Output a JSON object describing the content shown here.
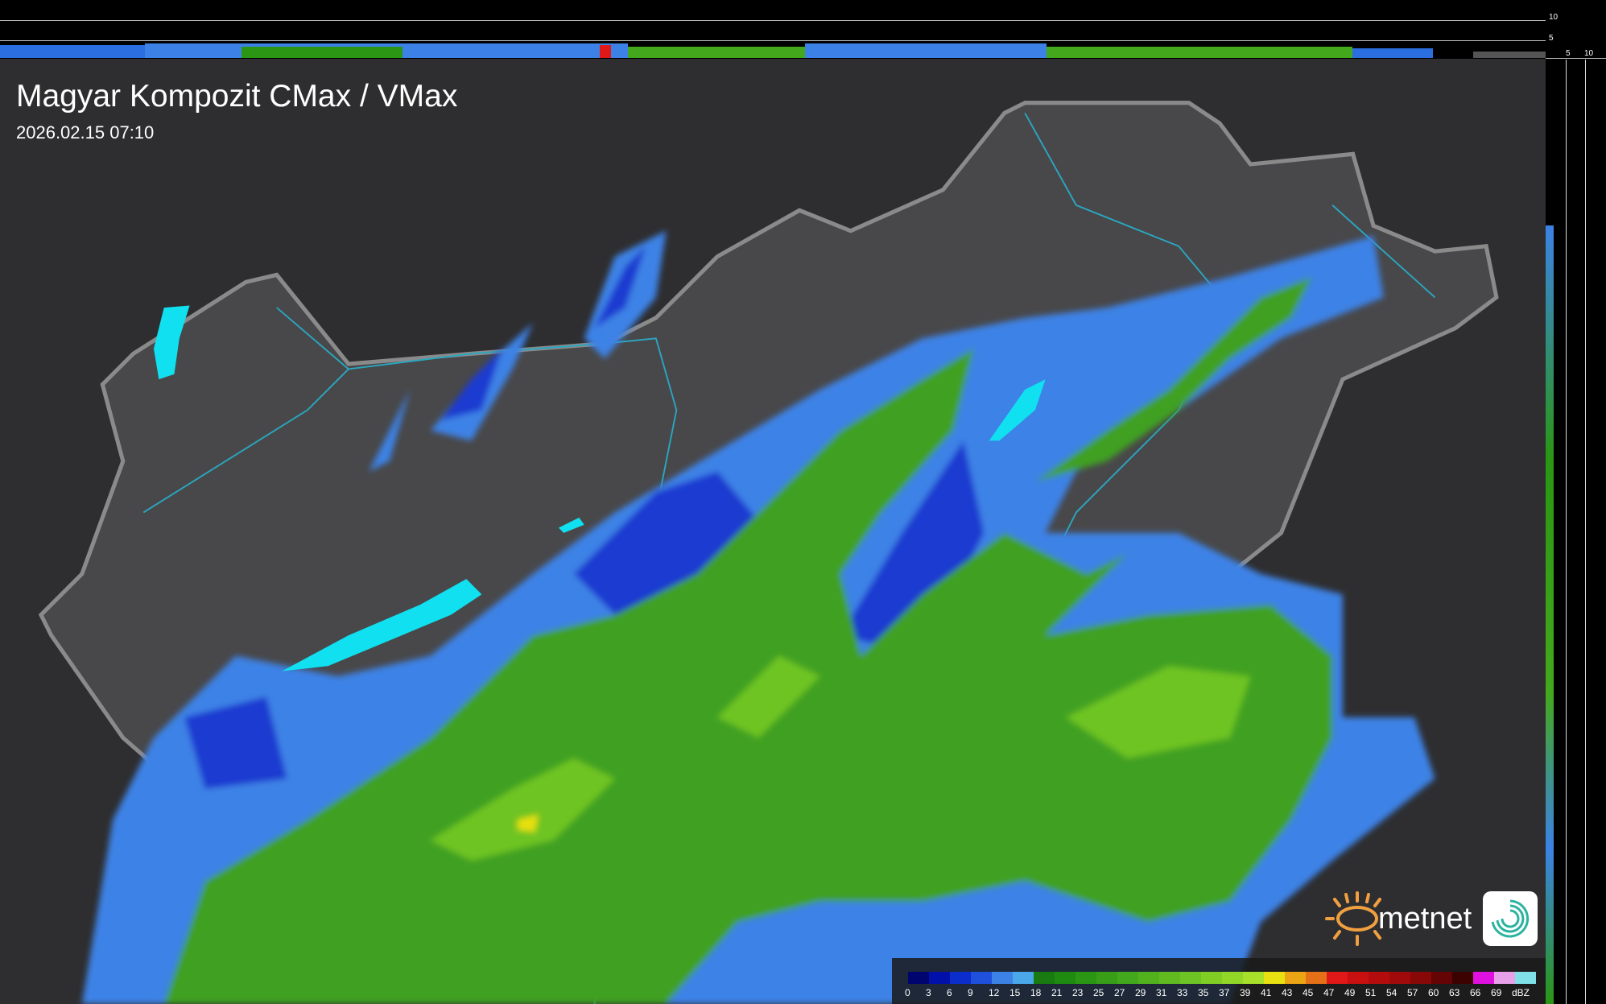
{
  "header": {
    "title": "Magyar Kompozit CMax / VMax",
    "timestamp": "2026.02.15 07:10"
  },
  "side_axes": {
    "top_ticks": [
      "10",
      "5"
    ],
    "right_ticks": [
      "5",
      "10"
    ]
  },
  "logo": {
    "brand": "metnet",
    "colors": {
      "sun": "#f0a040",
      "text": "#ffffff",
      "swirl": "#2bb3a0"
    }
  },
  "legend": {
    "unit": "dBZ",
    "labels": [
      "0",
      "3",
      "6",
      "9",
      "12",
      "15",
      "18",
      "21",
      "23",
      "25",
      "27",
      "29",
      "31",
      "33",
      "35",
      "37",
      "39",
      "41",
      "43",
      "45",
      "47",
      "49",
      "51",
      "54",
      "57",
      "60",
      "63",
      "66",
      "69"
    ],
    "colors": [
      "#00046e",
      "#0010a8",
      "#0a2dcc",
      "#1e50dc",
      "#3c82e6",
      "#4aa8ea",
      "#187a10",
      "#1e8a10",
      "#2a9614",
      "#389e18",
      "#44a81c",
      "#52b21e",
      "#60ba20",
      "#6ec424",
      "#80ce24",
      "#92d628",
      "#a6e02a",
      "#e8e010",
      "#eaa414",
      "#e67018",
      "#e01818",
      "#c81010",
      "#b40c0c",
      "#a00a0a",
      "#880808",
      "#640404",
      "#3c0202",
      "#e010e0",
      "#e8a0e8",
      "#80e0e8"
    ]
  },
  "map_colors": {
    "background": "#2e2e30",
    "country": "#4a4a4c",
    "border": "#8a8a8a",
    "rivers": "#2aa6c0",
    "lakes": "#10e0f0",
    "rain_light": "#3c82e6",
    "rain_dark": "#1630c8",
    "rain_moderate": "#3fa020"
  }
}
